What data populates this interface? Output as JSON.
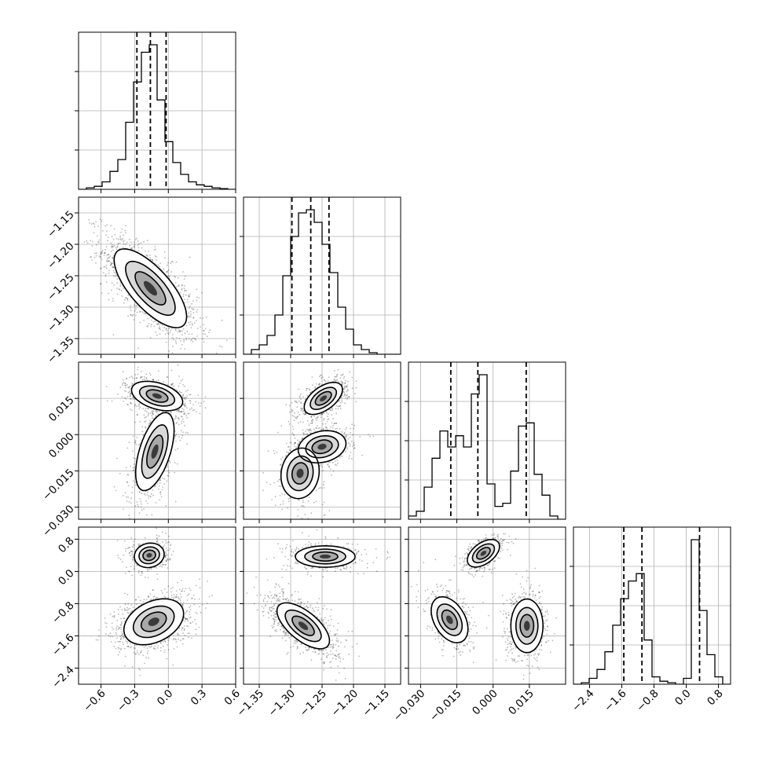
{
  "chart_data": {
    "type": "corner",
    "params": [
      {
        "lim": [
          -0.8,
          0.6
        ],
        "ticks": [
          -0.6,
          -0.3,
          0.0,
          0.3,
          0.6
        ],
        "tick_labels": [
          "−0.6",
          "−0.3",
          "0.0",
          "0.3",
          "0.6"
        ],
        "quantiles": [
          -0.28,
          -0.16,
          -0.02
        ],
        "hist": {
          "edges": [
            -0.8,
            -0.73,
            -0.66,
            -0.59,
            -0.52,
            -0.45,
            -0.38,
            -0.31,
            -0.24,
            -0.17,
            -0.1,
            -0.03,
            0.04,
            0.11,
            0.18,
            0.25,
            0.32,
            0.39,
            0.46,
            0.53,
            0.6
          ],
          "counts": [
            0,
            0.01,
            0.02,
            0.05,
            0.12,
            0.2,
            0.45,
            0.72,
            0.92,
            0.97,
            0.6,
            0.32,
            0.18,
            0.1,
            0.05,
            0.03,
            0.02,
            0.01,
            0.005,
            0
          ]
        }
      },
      {
        "lim": [
          -1.375,
          -1.125
        ],
        "ticks": [
          -1.35,
          -1.3,
          -1.25,
          -1.2,
          -1.15
        ],
        "tick_labels": [
          "−1.35",
          "−1.30",
          "−1.25",
          "−1.20",
          "−1.15"
        ],
        "quantiles": [
          -1.298,
          -1.268,
          -1.239
        ],
        "hist": {
          "edges": [
            -1.375,
            -1.3625,
            -1.35,
            -1.3375,
            -1.325,
            -1.3125,
            -1.3,
            -1.2875,
            -1.275,
            -1.2625,
            -1.25,
            -1.2375,
            -1.225,
            -1.2125,
            -1.2,
            -1.1875,
            -1.175,
            -1.1625,
            -1.15,
            -1.1375,
            -1.125
          ],
          "counts": [
            0,
            0.03,
            0.06,
            0.12,
            0.25,
            0.5,
            0.75,
            0.9,
            0.92,
            0.84,
            0.7,
            0.52,
            0.3,
            0.16,
            0.06,
            0.03,
            0.01,
            0,
            0,
            0
          ]
        }
      },
      {
        "lim": [
          -0.035,
          0.03
        ],
        "ticks": [
          -0.03,
          -0.015,
          0.0,
          0.015
        ],
        "tick_labels": [
          "−0.030",
          "−0.015",
          "0.000",
          "0.015"
        ],
        "quantiles": [
          -0.0175,
          -0.0063,
          0.0137
        ],
        "hist": {
          "edges": [
            -0.035,
            -0.03175,
            -0.0285,
            -0.02525,
            -0.022,
            -0.01875,
            -0.0155,
            -0.01225,
            -0.009,
            -0.00575,
            -0.0025,
            0.00075,
            0.004,
            0.00725,
            0.0105,
            0.01375,
            0.017,
            0.02025,
            0.0235,
            0.02675,
            0.03
          ],
          "counts": [
            0.02,
            0.05,
            0.2,
            0.38,
            0.55,
            0.45,
            0.52,
            0.45,
            0.78,
            0.9,
            0.22,
            0.08,
            0.1,
            0.3,
            0.58,
            0.6,
            0.28,
            0.15,
            0.02,
            0
          ]
        }
      },
      {
        "lim": [
          -2.8,
          1.1
        ],
        "ticks": [
          -2.4,
          -1.6,
          -0.8,
          0.0,
          0.8
        ],
        "tick_labels": [
          "−2.4",
          "−1.6",
          "−0.8",
          "0.0",
          "0.8"
        ],
        "quantiles": [
          -1.55,
          -1.1,
          0.33
        ],
        "hist": {
          "edges": [
            -2.8,
            -2.605,
            -2.41,
            -2.215,
            -2.02,
            -1.825,
            -1.63,
            -1.435,
            -1.24,
            -1.045,
            -0.85,
            -0.655,
            -0.46,
            -0.265,
            -0.07,
            0.125,
            0.32,
            0.515,
            0.71,
            0.905,
            1.1
          ],
          "counts": [
            0,
            0.01,
            0.04,
            0.1,
            0.22,
            0.4,
            0.58,
            0.7,
            0.75,
            0.3,
            0.05,
            0.02,
            0.01,
            0,
            0.04,
            0.98,
            0.5,
            0.2,
            0.05,
            0
          ]
        }
      }
    ],
    "panels_2d": [
      {
        "row": 1,
        "col": 0,
        "modes": [
          {
            "center": [
              -0.16,
              -1.27
            ],
            "spread": [
              0.17,
              0.033
            ],
            "rho": -0.72,
            "weight": 1.0
          }
        ]
      },
      {
        "row": 2,
        "col": 0,
        "modes": [
          {
            "center": [
              -0.1,
              0.016
            ],
            "spread": [
              0.12,
              0.0032
            ],
            "rho": -0.4,
            "weight": 0.45
          },
          {
            "center": [
              -0.12,
              -0.007
            ],
            "spread": [
              0.09,
              0.0085
            ],
            "rho": 0.55,
            "weight": 0.55
          }
        ]
      },
      {
        "row": 2,
        "col": 1,
        "modes": [
          {
            "center": [
              -1.248,
              0.015
            ],
            "spread": [
              0.016,
              0.0035
            ],
            "rho": 0.55,
            "weight": 0.45
          },
          {
            "center": [
              -1.25,
              -0.005
            ],
            "spread": [
              0.02,
              0.0035
            ],
            "rho": 0.2,
            "weight": 0.35
          },
          {
            "center": [
              -1.285,
              -0.016
            ],
            "spread": [
              0.016,
              0.0055
            ],
            "rho": 0.1,
            "weight": 0.2
          }
        ]
      },
      {
        "row": 3,
        "col": 0,
        "modes": [
          {
            "center": [
              -0.17,
              0.4
            ],
            "spread": [
              0.07,
              0.16
            ],
            "rho": 0.1,
            "weight": 0.3
          },
          {
            "center": [
              -0.13,
              -1.25
            ],
            "spread": [
              0.14,
              0.3
            ],
            "rho": 0.35,
            "weight": 0.7
          }
        ]
      },
      {
        "row": 3,
        "col": 1,
        "modes": [
          {
            "center": [
              -1.245,
              0.37
            ],
            "spread": [
              0.025,
              0.14
            ],
            "rho": 0.0,
            "weight": 0.3
          },
          {
            "center": [
              -1.28,
              -1.35
            ],
            "spread": [
              0.022,
              0.3
            ],
            "rho": -0.65,
            "weight": 0.7
          }
        ]
      },
      {
        "row": 3,
        "col": 2,
        "modes": [
          {
            "center": [
              -0.004,
              0.45
            ],
            "spread": [
              0.0035,
              0.18
            ],
            "rho": 0.5,
            "weight": 0.3
          },
          {
            "center": [
              -0.018,
              -1.2
            ],
            "spread": [
              0.004,
              0.3
            ],
            "rho": -0.4,
            "weight": 0.3
          },
          {
            "center": [
              0.014,
              -1.35
            ],
            "spread": [
              0.0035,
              0.35
            ],
            "rho": 0.0,
            "weight": 0.4
          }
        ]
      }
    ],
    "grid": true
  }
}
